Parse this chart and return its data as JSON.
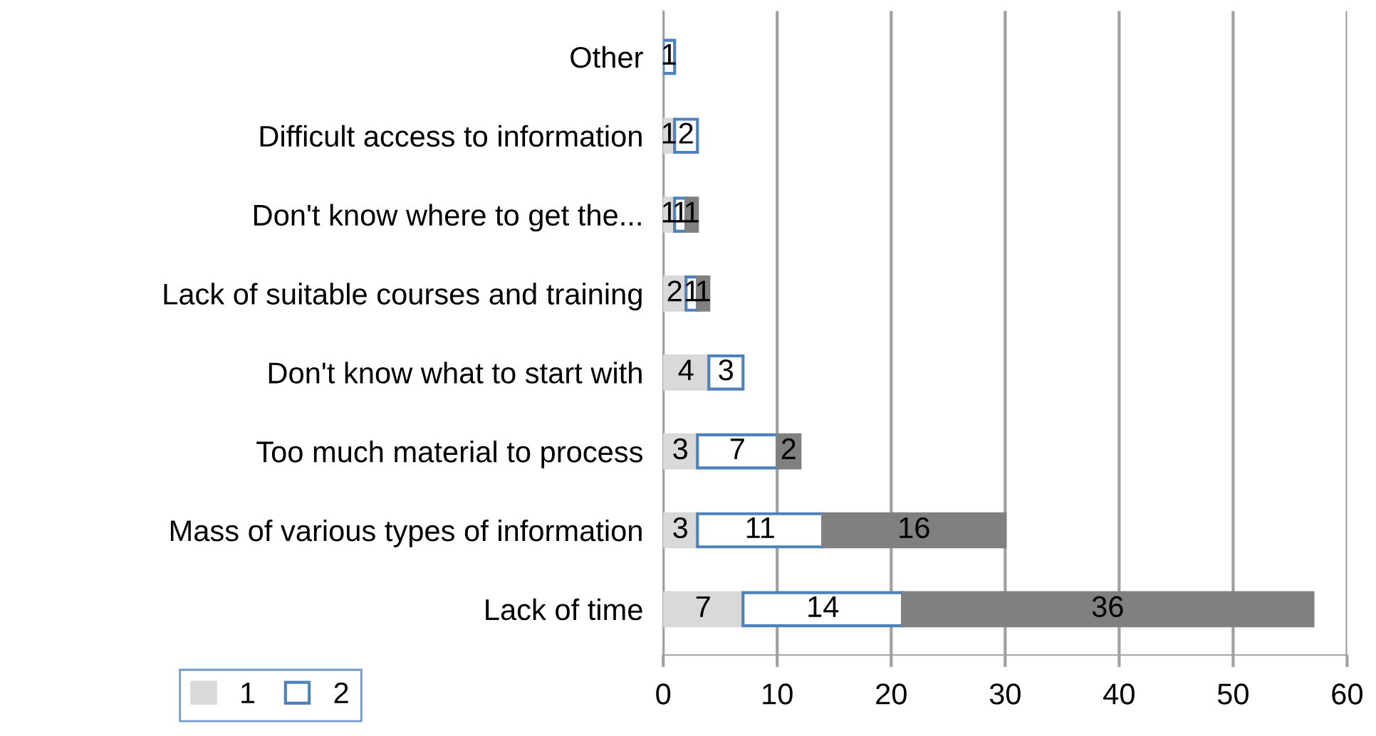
{
  "chart_data": {
    "type": "bar",
    "orientation": "horizontal",
    "stacked": true,
    "categories": [
      "Other",
      "Difficult access to information",
      "Don't know where to get the...",
      "Lack of suitable courses and training",
      "Don't know what to start with",
      "Too much material to process",
      "Mass of various types of information",
      "Lack of time"
    ],
    "series": [
      {
        "name": "1",
        "color": "#d9d9d9",
        "values": [
          0,
          1,
          1,
          2,
          4,
          3,
          3,
          7
        ],
        "value_labels": [
          null,
          "1",
          "1",
          "2",
          "4",
          "3",
          "3",
          "7"
        ]
      },
      {
        "name": "2",
        "color": "#ffffff",
        "values": [
          1,
          2,
          1,
          1,
          3,
          7,
          11,
          14
        ],
        "value_labels": [
          "1",
          "2",
          "1",
          "1",
          "3",
          "7",
          "11",
          "14"
        ]
      },
      {
        "color": "#808080",
        "values": [
          null,
          null,
          1,
          1,
          null,
          2,
          16,
          36
        ],
        "value_labels": [
          null,
          null,
          "1",
          "1",
          null,
          "2",
          "16",
          "36"
        ]
      }
    ],
    "xlim": [
      0,
      60
    ],
    "xticks": [
      0,
      10,
      20,
      30,
      40,
      50,
      60
    ],
    "grid": "x",
    "legend": "bottom left"
  }
}
